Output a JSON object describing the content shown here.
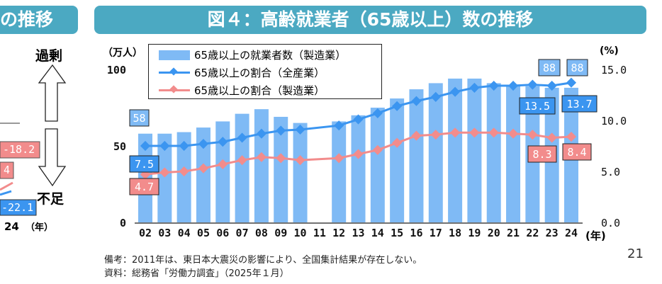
{
  "left_panel": {
    "title_fragment": "の推移",
    "surplus_label": "過剰",
    "shortage_label": "不足",
    "label_red": "-18.2",
    "label_red2": "4",
    "label_blue": "-22.1",
    "last_tick": "24",
    "x_unit": "（年）"
  },
  "page_number": "21",
  "notes": {
    "remark": "備考：2011年は、東日本大震災の影響により、全国集計結果が存在しない。",
    "source": "資料：総務省「労働力調査」（2025年１月）"
  },
  "colors": {
    "title_bar": "#4ba9c2",
    "bars": "#7fbaf5",
    "line_all": "#3b95f0",
    "line_mfg": "#f28c8c"
  },
  "chart_data": {
    "type": "bar+line",
    "title": "図４：高齢就業者（65歳以上）数の推移",
    "ylabel_left": "（万人）",
    "ylabel_right": "(%)",
    "xlabel": "(年)",
    "ylim_left": [
      0,
      100
    ],
    "ylim_right": [
      0,
      15
    ],
    "yticks_left": [
      "0",
      "50",
      "100"
    ],
    "yticks_right": [
      "0.0",
      "5.0",
      "10.0",
      "15.0"
    ],
    "categories": [
      "02",
      "03",
      "04",
      "05",
      "06",
      "07",
      "08",
      "09",
      "10",
      "11",
      "12",
      "13",
      "14",
      "15",
      "16",
      "17",
      "18",
      "19",
      "20",
      "21",
      "22",
      "23",
      "24"
    ],
    "legend_position": "top",
    "series": [
      {
        "name": "65歳以上の就業者数（製造業）",
        "type": "bar",
        "axis": "left",
        "values": [
          58,
          58,
          59,
          62,
          66,
          71,
          74,
          69,
          65,
          null,
          66,
          70,
          75,
          81,
          87,
          91,
          94,
          94,
          91,
          90,
          89,
          88,
          88
        ]
      },
      {
        "name": "65歳以上の割合（全産業）",
        "type": "line",
        "axis": "right",
        "values": [
          7.5,
          7.5,
          7.5,
          7.7,
          7.9,
          8.3,
          8.7,
          9.0,
          9.1,
          null,
          9.5,
          10.1,
          10.7,
          11.4,
          11.9,
          12.3,
          12.8,
          13.2,
          13.4,
          13.4,
          13.5,
          13.4,
          13.7
        ]
      },
      {
        "name": "65歳以上の割合（製造業）",
        "type": "line",
        "axis": "right",
        "values": [
          4.7,
          4.9,
          5.0,
          5.3,
          5.7,
          6.1,
          6.4,
          6.3,
          6.1,
          null,
          6.3,
          6.7,
          7.1,
          7.8,
          8.5,
          8.6,
          8.8,
          8.8,
          8.8,
          8.7,
          8.6,
          8.3,
          8.4
        ]
      }
    ],
    "data_labels": [
      {
        "series": 0,
        "category": "02",
        "text": "58"
      },
      {
        "series": 0,
        "category": "23",
        "text": "88"
      },
      {
        "series": 0,
        "category": "24",
        "text": "88"
      },
      {
        "series": 1,
        "category": "02",
        "text": "7.5"
      },
      {
        "series": 1,
        "category": "22",
        "text": "13.5"
      },
      {
        "series": 1,
        "category": "24",
        "text": "13.7"
      },
      {
        "series": 2,
        "category": "02",
        "text": "4.7"
      },
      {
        "series": 2,
        "category": "23",
        "text": "8.3"
      },
      {
        "series": 2,
        "category": "24",
        "text": "8.4"
      }
    ]
  }
}
